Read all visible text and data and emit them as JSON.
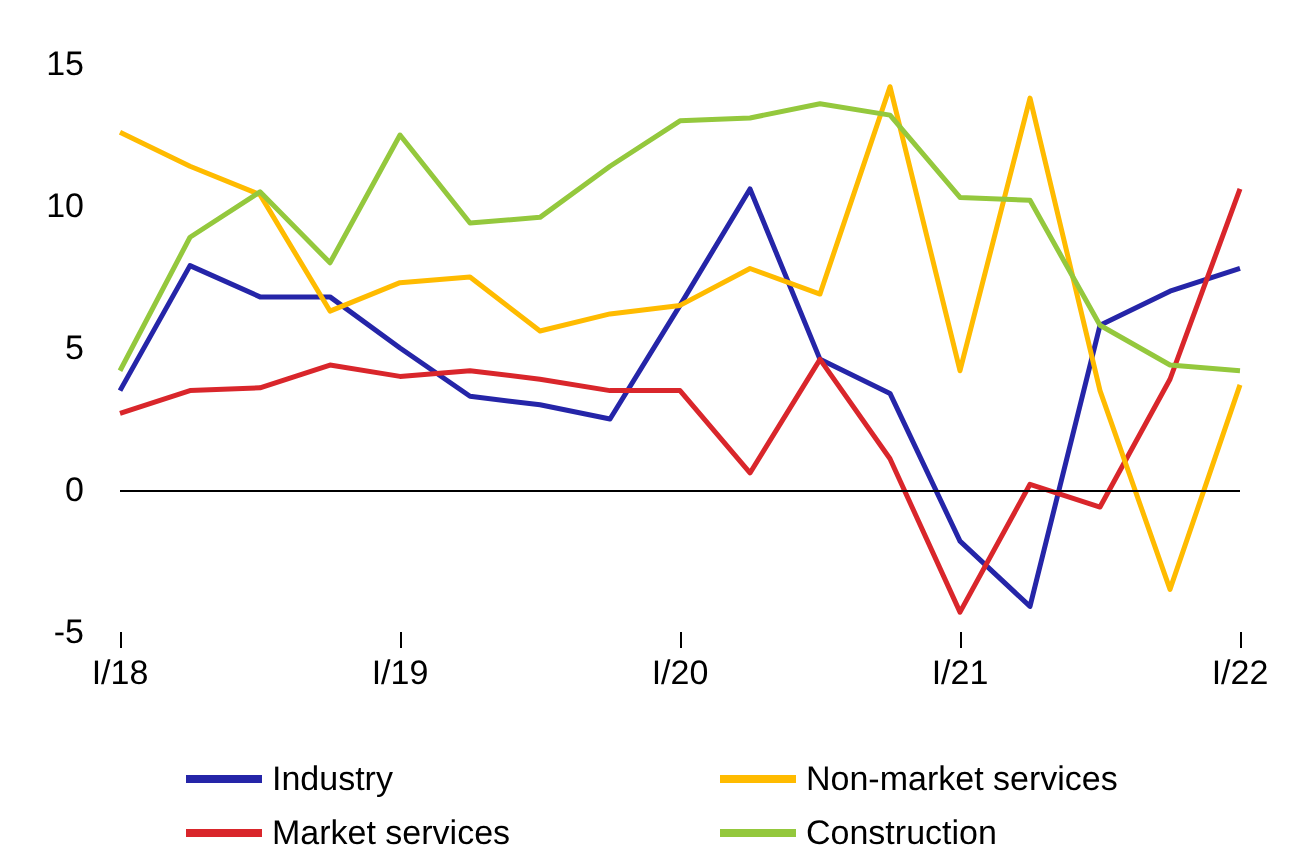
{
  "chart_data": {
    "type": "line",
    "categories": [
      "I/18",
      null,
      null,
      null,
      "I/19",
      null,
      null,
      null,
      "I/20",
      null,
      null,
      null,
      "I/21",
      null,
      null,
      null,
      "I/22"
    ],
    "series": [
      {
        "name": "Industry",
        "color": "#2525a8",
        "values": [
          3.5,
          7.9,
          6.8,
          6.8,
          5.0,
          3.3,
          3.0,
          2.5,
          6.5,
          10.6,
          4.6,
          3.4,
          -1.8,
          -4.1,
          5.8,
          7.0,
          7.8
        ]
      },
      {
        "name": "Market services",
        "color": "#d9262b",
        "values": [
          2.7,
          3.5,
          3.6,
          4.4,
          4.0,
          4.2,
          3.9,
          3.5,
          3.5,
          0.6,
          4.6,
          1.1,
          -4.3,
          0.2,
          -0.6,
          3.9,
          10.6
        ]
      },
      {
        "name": "Non-market services",
        "color": "#ffbb00",
        "values": [
          12.6,
          11.4,
          10.4,
          6.3,
          7.3,
          7.5,
          5.6,
          6.2,
          6.5,
          7.8,
          6.9,
          14.2,
          4.2,
          13.8,
          3.5,
          -3.5,
          3.7
        ]
      },
      {
        "name": "Construction",
        "color": "#94c83d",
        "values": [
          4.2,
          8.9,
          10.5,
          8.0,
          12.5,
          9.4,
          9.6,
          11.4,
          13.0,
          13.1,
          13.6,
          13.2,
          10.3,
          10.2,
          5.8,
          4.4,
          4.2
        ]
      }
    ],
    "ylim": [
      -5,
      15
    ],
    "yticks": [
      -5,
      0,
      5,
      10,
      15
    ],
    "grid": false,
    "legend": "bottom",
    "marker": "none",
    "line_style": "solid",
    "ref_lines": [
      {
        "axis": "y",
        "value": 0,
        "label": null,
        "color": "#000000"
      }
    ]
  }
}
